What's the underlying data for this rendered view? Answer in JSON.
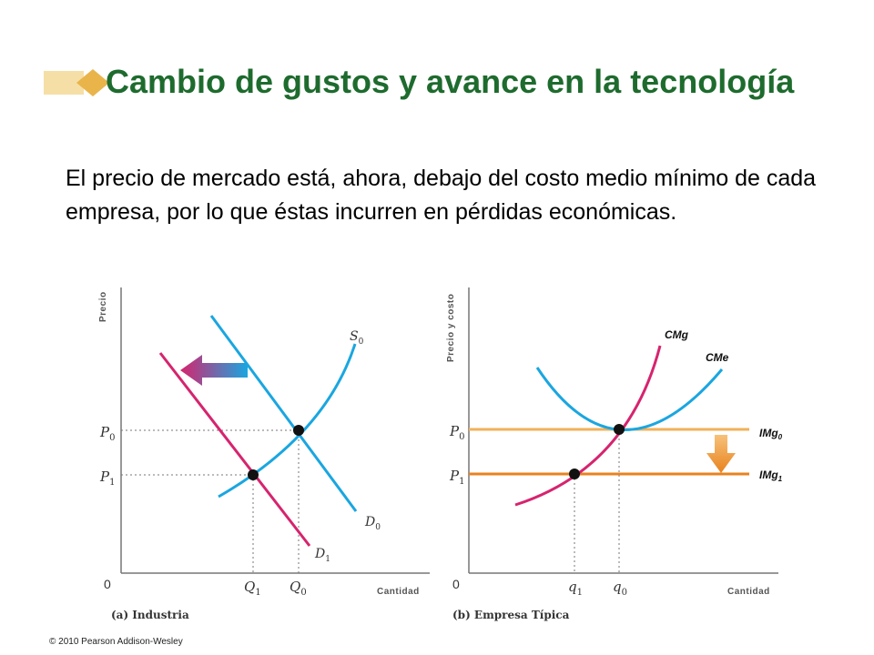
{
  "slide": {
    "title": "Cambio de gustos y avance en la tecnología",
    "body": "El precio de mercado está, ahora, debajo del costo medio mínimo de cada empresa, por lo que éstas incurren en pérdidas económicas.",
    "copyright": "© 2010 Pearson Addison-Wesley"
  },
  "colors": {
    "title": "#1e6b2e",
    "blue_curve": "#1aa6e0",
    "magenta_curve": "#d6246e",
    "light_orange_line": "#f2b15a",
    "dark_orange_line": "#e8821e"
  },
  "panel_a": {
    "y_axis_label": "Precio",
    "x_axis_label": "Cantidad",
    "origin": "0",
    "caption": "(a) Industria",
    "y_ticks": [
      {
        "main": "P",
        "sub": "0"
      },
      {
        "main": "P",
        "sub": "1"
      }
    ],
    "x_ticks": [
      {
        "main": "Q",
        "sub": "1"
      },
      {
        "main": "Q",
        "sub": "0"
      }
    ],
    "curves": {
      "supply": {
        "main": "S",
        "sub": "0"
      },
      "demand_old": {
        "main": "D",
        "sub": "0"
      },
      "demand_new": {
        "main": "D",
        "sub": "1"
      }
    }
  },
  "panel_b": {
    "y_axis_label": "Precio y costo",
    "x_axis_label": "Cantidad",
    "origin": "0",
    "caption": "(b) Empresa Típica",
    "y_ticks": [
      {
        "main": "P",
        "sub": "0"
      },
      {
        "main": "P",
        "sub": "1"
      }
    ],
    "x_ticks": [
      {
        "main": "q",
        "sub": "1"
      },
      {
        "main": "q",
        "sub": "0"
      }
    ],
    "curves": {
      "mc": "CMg",
      "atc": "CMe",
      "mr0": {
        "main": "IMg",
        "sub": "0"
      },
      "mr1": {
        "main": "IMg",
        "sub": "1"
      }
    }
  }
}
